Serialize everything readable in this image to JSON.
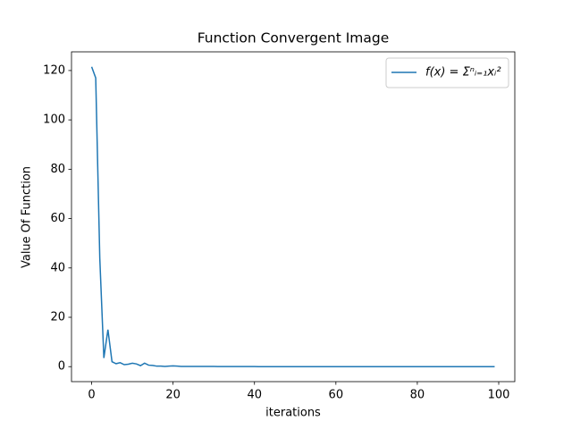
{
  "chart_data": {
    "type": "line",
    "title": "Function Convergent Image",
    "xlabel": "iterations",
    "ylabel": "Value Of Function",
    "legend": "upper right",
    "x": [
      0,
      1,
      2,
      3,
      4,
      5,
      6,
      7,
      8,
      9,
      10,
      11,
      12,
      13,
      14,
      15,
      16,
      17,
      18,
      19,
      20,
      21,
      22,
      23,
      24,
      25,
      26,
      27,
      28,
      29,
      30,
      31,
      32,
      33,
      34,
      35,
      36,
      37,
      38,
      39,
      40,
      41,
      42,
      43,
      44,
      45,
      46,
      47,
      48,
      49,
      50,
      51,
      52,
      53,
      54,
      55,
      56,
      57,
      58,
      59,
      60,
      61,
      62,
      63,
      64,
      65,
      66,
      67,
      68,
      69,
      70,
      71,
      72,
      73,
      74,
      75,
      76,
      77,
      78,
      79,
      80,
      81,
      82,
      83,
      84,
      85,
      86,
      87,
      88,
      89,
      90,
      91,
      92,
      93,
      94,
      95,
      96,
      97,
      98,
      99
    ],
    "series": [
      {
        "name": "f(x) = Σⁿᵢ₌₁xᵢ²",
        "color": "#1f77b4",
        "values": [
          121.5,
          117,
          44,
          3.5,
          15,
          2,
          1.2,
          1.6,
          0.8,
          1,
          1.4,
          1.1,
          0.4,
          1.4,
          0.6,
          0.5,
          0.2,
          0.2,
          0.1,
          0.2,
          0.3,
          0.2,
          0.1,
          0.1,
          0.1,
          0.1,
          0.1,
          0.1,
          0.1,
          0.1,
          0.1,
          0.05,
          0.05,
          0.05,
          0.05,
          0.05,
          0.05,
          0.05,
          0.05,
          0.05,
          0.05,
          0,
          0,
          0,
          0,
          0,
          0,
          0,
          0,
          0,
          0,
          0,
          0,
          0,
          0,
          0,
          0,
          0,
          0,
          0,
          0,
          0,
          0,
          0,
          0,
          0,
          0,
          0,
          0,
          0,
          0,
          0,
          0,
          0,
          0,
          0,
          0,
          0,
          0,
          0,
          0,
          0,
          0,
          0,
          0,
          0,
          0,
          0,
          0,
          0,
          0,
          0,
          0,
          0,
          0,
          0,
          0,
          0,
          0,
          0
        ]
      }
    ],
    "xlim": [
      -4.95,
      103.95
    ],
    "xticks": [
      0,
      20,
      40,
      60,
      80,
      100
    ],
    "ylim": [
      -6.075,
      127.575
    ],
    "yticks": [
      0,
      20,
      40,
      60,
      80,
      100,
      120
    ]
  }
}
